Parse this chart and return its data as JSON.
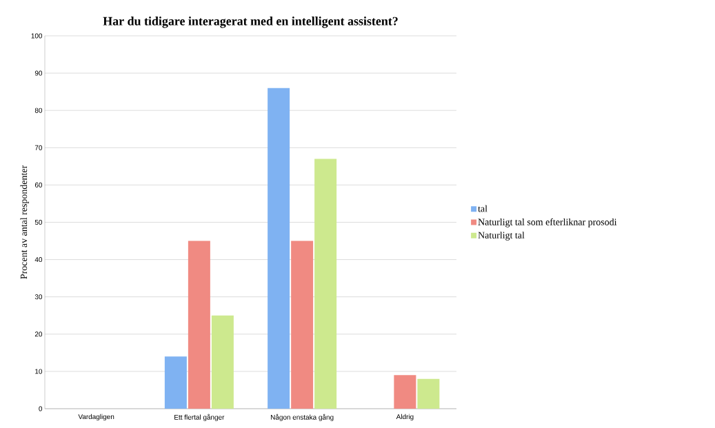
{
  "chart_data": {
    "type": "bar",
    "title": "Har du tidigare interagerat med en intelligent assistent?",
    "ylabel": "Procent av antal respondenter",
    "categories": [
      "Vardagligen",
      "Ett flertal gånger",
      "Någon enstaka gång",
      "Aldrig"
    ],
    "series": [
      {
        "name": "tal",
        "color": "#7fb2f2",
        "values": [
          0,
          14,
          86,
          0
        ]
      },
      {
        "name": "Naturligt tal som efterliknar prosodi",
        "color": "#f08a82",
        "values": [
          0,
          45,
          45,
          9
        ]
      },
      {
        "name": "Naturligt tal",
        "color": "#cde98e",
        "values": [
          0,
          25,
          67,
          8
        ]
      }
    ],
    "ylim": [
      0,
      100
    ],
    "yticks": [
      0,
      10,
      20,
      30,
      40,
      50,
      60,
      70,
      80,
      90,
      100
    ],
    "grid": "y",
    "legend": "right"
  }
}
